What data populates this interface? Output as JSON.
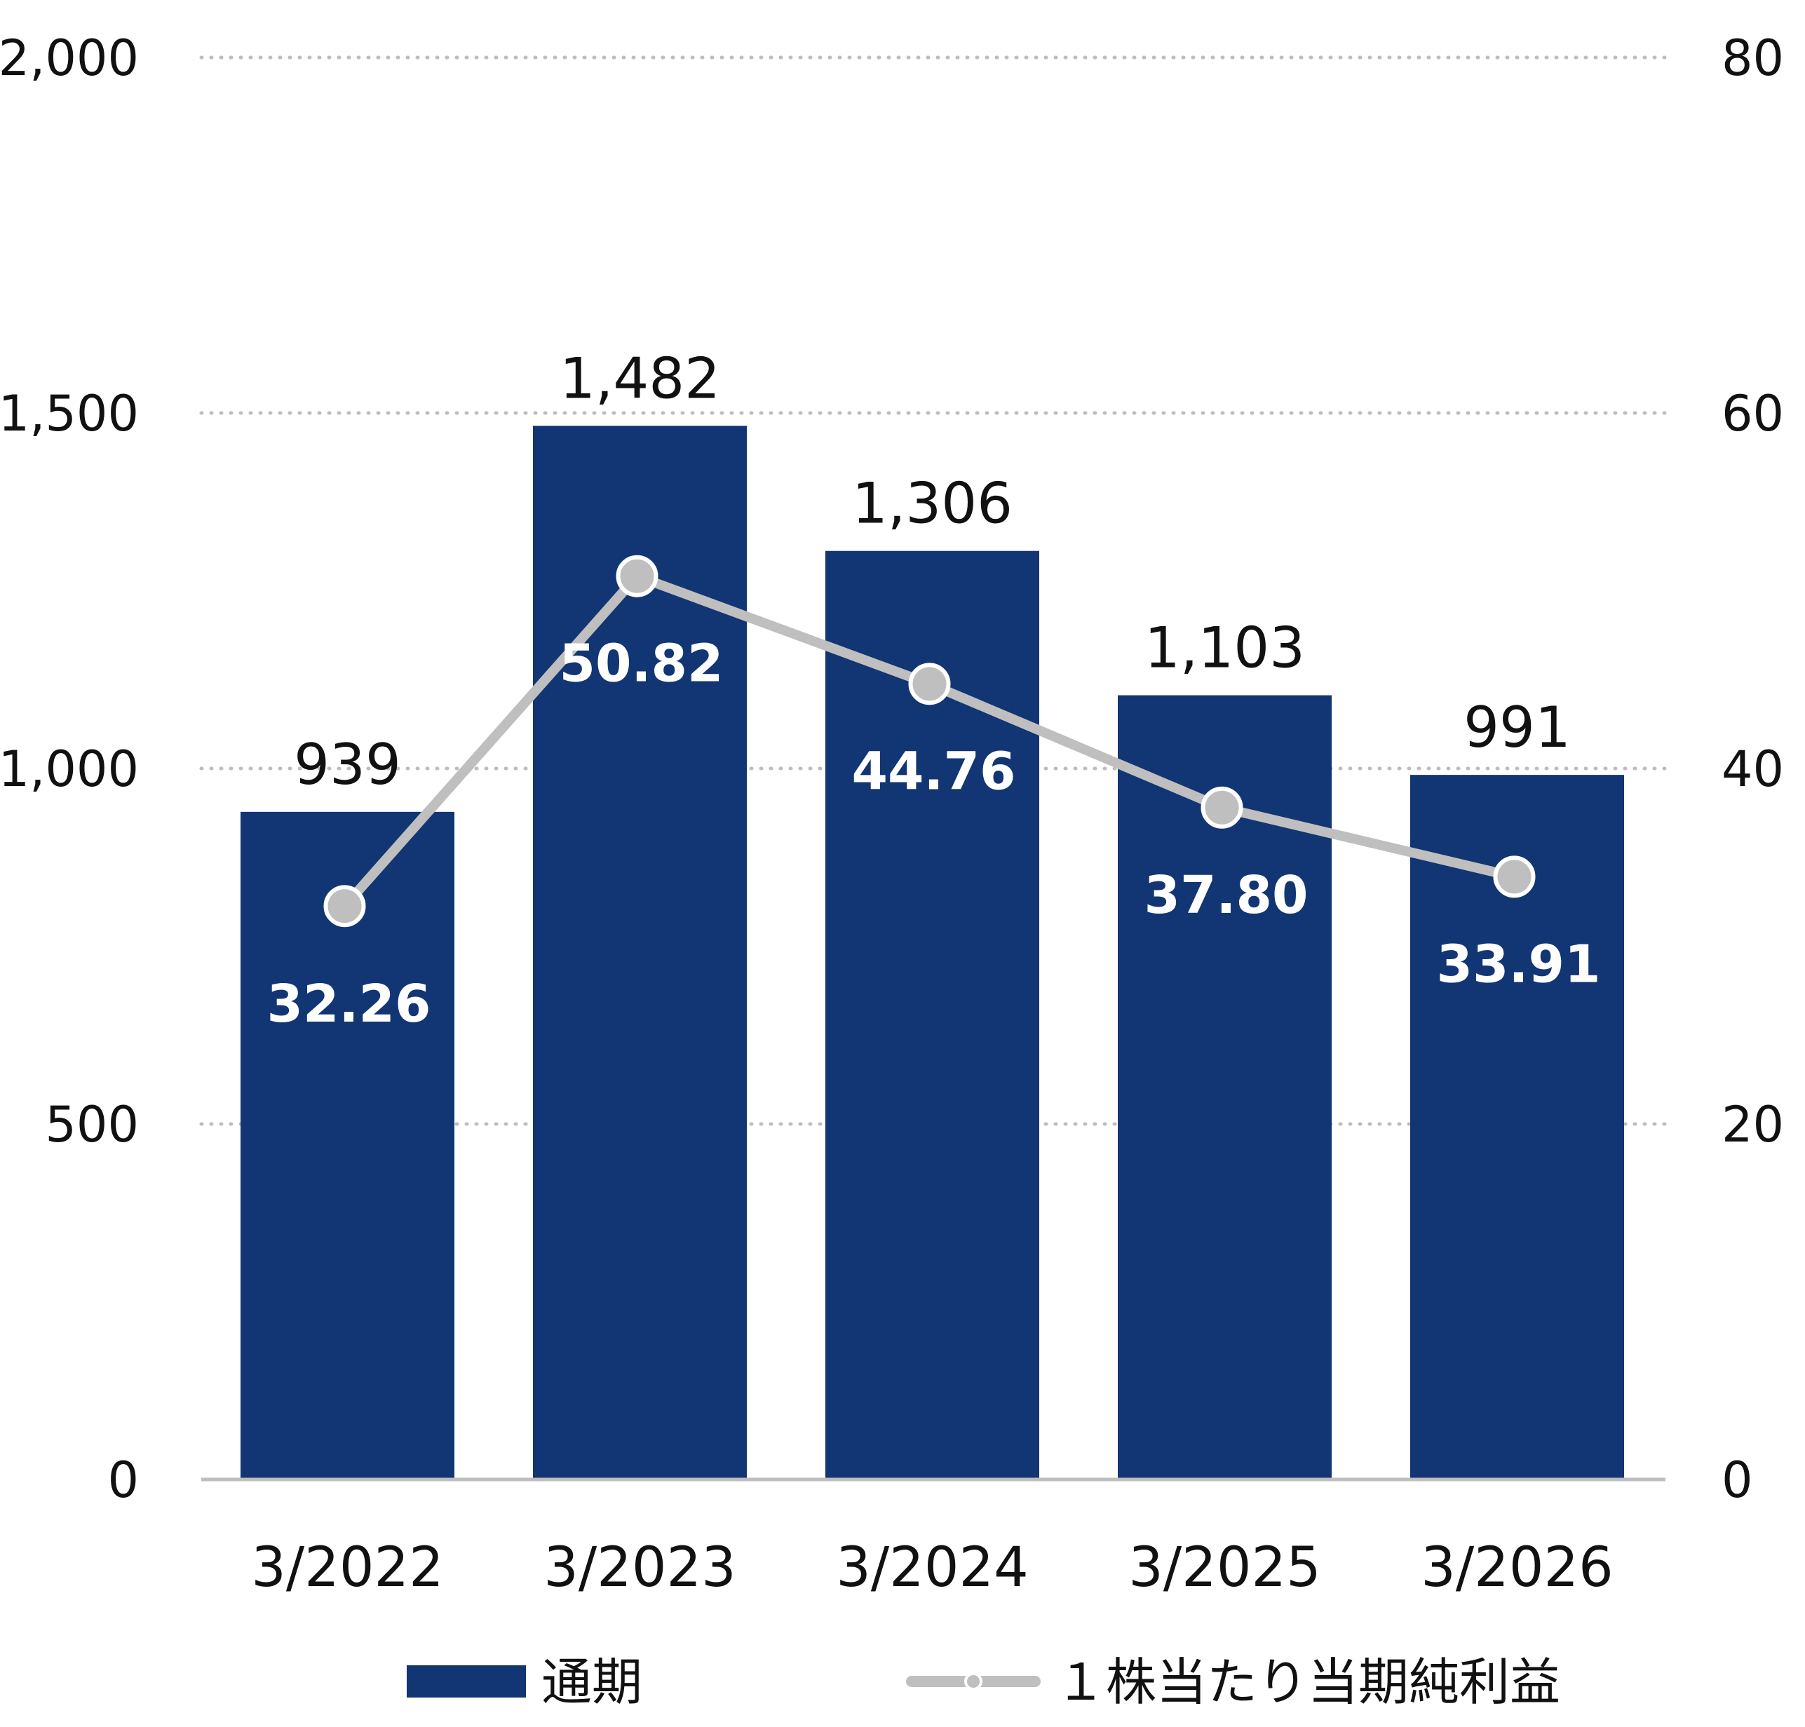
{
  "chart_data": {
    "type": "bar",
    "categories": [
      "3/2022",
      "3/2023",
      "3/2024",
      "3/2025",
      "3/2026"
    ],
    "series": [
      {
        "name": "通期",
        "type": "bar",
        "axis": "left",
        "color": "#123573",
        "values": [
          939,
          1482,
          1306,
          1103,
          991
        ],
        "labels": [
          "939",
          "1,482",
          "1,306",
          "1,103",
          "991"
        ]
      },
      {
        "name": "１株当たり当期純利益",
        "type": "line",
        "axis": "right",
        "color": "#bfbfbf",
        "values": [
          32.26,
          50.82,
          44.76,
          37.8,
          33.91
        ],
        "labels": [
          "32.26",
          "50.82",
          "44.76",
          "37.80",
          "33.91"
        ]
      }
    ],
    "y_left": {
      "ylim": [
        0,
        2000
      ],
      "ticks": [
        "0",
        "500",
        "1,000",
        "1,500",
        "2,000"
      ]
    },
    "y_right": {
      "ylim": [
        0,
        80
      ],
      "ticks": [
        "0",
        "20",
        "40",
        "60",
        "80"
      ]
    },
    "grid": true,
    "legend": "bottom"
  }
}
